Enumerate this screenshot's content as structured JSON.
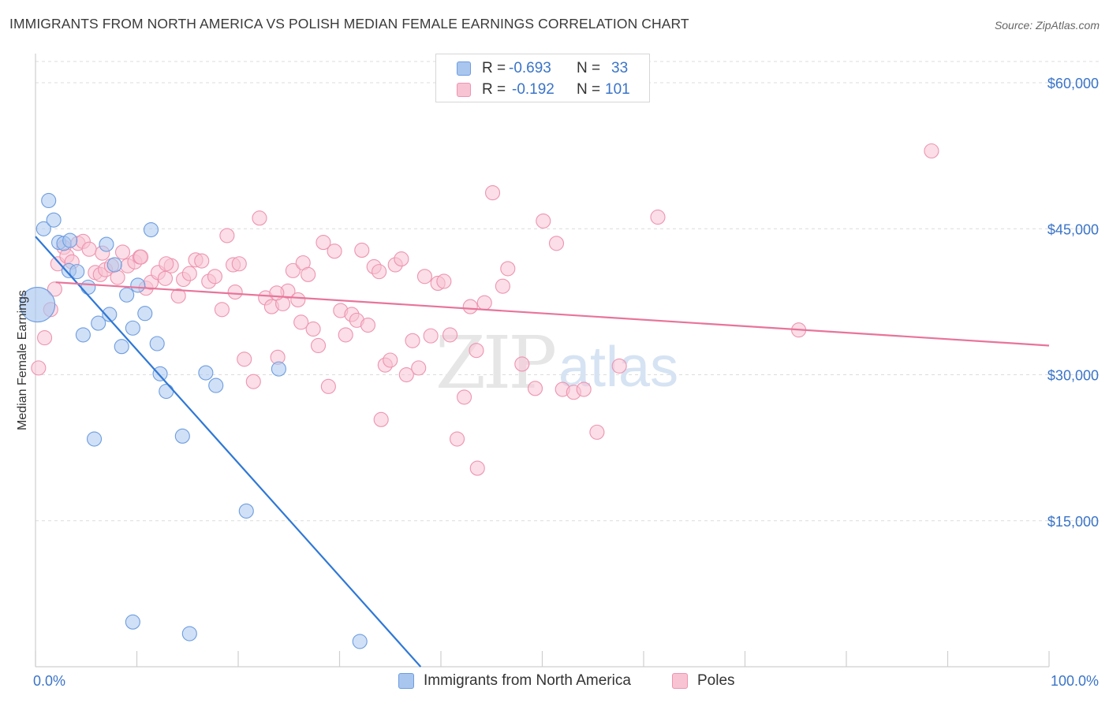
{
  "title": "IMMIGRANTS FROM NORTH AMERICA VS POLISH MEDIAN FEMALE EARNINGS CORRELATION CHART",
  "source": "Source: ZipAtlas.com",
  "watermark": {
    "zip": "ZIP",
    "atlas": "atlas"
  },
  "legend_top": {
    "rows": [
      {
        "r_label": "R = ",
        "r_value": "-0.693",
        "n_label": "N = ",
        "n_value": "33",
        "color": "#a9c6ef",
        "border": "#6d9de0"
      },
      {
        "r_label": "R = ",
        "r_value": "-0.192",
        "n_label": "N = ",
        "n_value": "101",
        "color": "#f8c3d3",
        "border": "#ee94b0"
      }
    ]
  },
  "legend_bottom": [
    {
      "label": "Immigrants from North America",
      "color": "#a9c6ef",
      "border": "#6d9de0"
    },
    {
      "label": "Poles",
      "color": "#f8c3d3",
      "border": "#ee94b0"
    }
  ],
  "chart_data": {
    "type": "scatter",
    "title": "IMMIGRANTS FROM NORTH AMERICA VS POLISH MEDIAN FEMALE EARNINGS CORRELATION CHART",
    "xlabel": "",
    "ylabel": "Median Female Earnings",
    "xlim": [
      0,
      100
    ],
    "ylim": [
      0,
      63000
    ],
    "x_tick_labels": [
      "0.0%",
      "100.0%"
    ],
    "y_ticks": [
      15000,
      30000,
      45000,
      60000
    ],
    "y_tick_labels": [
      "$15,000",
      "$30,000",
      "$45,000",
      "$60,000"
    ],
    "grid": true,
    "legend_position": "top-center",
    "series": [
      {
        "name": "Immigrants from North America",
        "color": "#a9c6ef",
        "stroke": "#6d9de0",
        "line_color": "#2f78d6",
        "trend": {
          "x": [
            0.0,
            38.0
          ],
          "y": [
            44200,
            0
          ]
        },
        "points": [
          {
            "x": 0.2,
            "y": 37200,
            "big": true
          },
          {
            "x": 0.8,
            "y": 45000
          },
          {
            "x": 1.3,
            "y": 47900
          },
          {
            "x": 1.8,
            "y": 45900
          },
          {
            "x": 2.3,
            "y": 43600
          },
          {
            "x": 2.8,
            "y": 43500
          },
          {
            "x": 3.4,
            "y": 43800
          },
          {
            "x": 3.3,
            "y": 40700
          },
          {
            "x": 4.1,
            "y": 40600
          },
          {
            "x": 5.2,
            "y": 39000
          },
          {
            "x": 7.0,
            "y": 43400
          },
          {
            "x": 7.8,
            "y": 41300
          },
          {
            "x": 9.0,
            "y": 38200
          },
          {
            "x": 10.1,
            "y": 39200
          },
          {
            "x": 11.4,
            "y": 44900
          },
          {
            "x": 7.3,
            "y": 36200
          },
          {
            "x": 6.2,
            "y": 35300
          },
          {
            "x": 4.7,
            "y": 34100
          },
          {
            "x": 9.6,
            "y": 34800
          },
          {
            "x": 10.8,
            "y": 36300
          },
          {
            "x": 12.0,
            "y": 33200
          },
          {
            "x": 8.5,
            "y": 32900
          },
          {
            "x": 12.3,
            "y": 30100
          },
          {
            "x": 12.9,
            "y": 28300
          },
          {
            "x": 16.8,
            "y": 30200
          },
          {
            "x": 17.8,
            "y": 28900
          },
          {
            "x": 24.0,
            "y": 30600
          },
          {
            "x": 5.8,
            "y": 23400
          },
          {
            "x": 14.5,
            "y": 23700
          },
          {
            "x": 20.8,
            "y": 16000
          },
          {
            "x": 9.6,
            "y": 4600
          },
          {
            "x": 15.2,
            "y": 3400
          },
          {
            "x": 32.0,
            "y": 2600
          }
        ]
      },
      {
        "name": "Poles",
        "color": "#f8c3d3",
        "stroke": "#ee94b0",
        "line_color": "#e8749a",
        "trend": {
          "x": [
            2.0,
            100.0
          ],
          "y": [
            39500,
            33000
          ]
        },
        "points": [
          {
            "x": 0.3,
            "y": 30700
          },
          {
            "x": 0.9,
            "y": 33800
          },
          {
            "x": 1.5,
            "y": 36700
          },
          {
            "x": 1.9,
            "y": 38800
          },
          {
            "x": 2.2,
            "y": 41400
          },
          {
            "x": 2.8,
            "y": 43100
          },
          {
            "x": 3.1,
            "y": 42200
          },
          {
            "x": 3.6,
            "y": 41600
          },
          {
            "x": 4.2,
            "y": 43500
          },
          {
            "x": 4.7,
            "y": 43700
          },
          {
            "x": 5.3,
            "y": 42900
          },
          {
            "x": 5.9,
            "y": 40500
          },
          {
            "x": 6.4,
            "y": 40300
          },
          {
            "x": 6.9,
            "y": 40800
          },
          {
            "x": 7.5,
            "y": 41200
          },
          {
            "x": 8.1,
            "y": 40000
          },
          {
            "x": 8.6,
            "y": 42600
          },
          {
            "x": 9.1,
            "y": 41200
          },
          {
            "x": 9.8,
            "y": 41600
          },
          {
            "x": 10.3,
            "y": 42100
          },
          {
            "x": 10.9,
            "y": 38900
          },
          {
            "x": 11.4,
            "y": 39500
          },
          {
            "x": 12.1,
            "y": 40500
          },
          {
            "x": 12.8,
            "y": 39900
          },
          {
            "x": 13.4,
            "y": 41200
          },
          {
            "x": 14.1,
            "y": 38100
          },
          {
            "x": 14.6,
            "y": 39800
          },
          {
            "x": 15.2,
            "y": 40400
          },
          {
            "x": 15.8,
            "y": 41800
          },
          {
            "x": 16.4,
            "y": 41700
          },
          {
            "x": 17.1,
            "y": 39600
          },
          {
            "x": 17.7,
            "y": 40100
          },
          {
            "x": 18.4,
            "y": 36700
          },
          {
            "x": 18.9,
            "y": 44300
          },
          {
            "x": 19.5,
            "y": 41300
          },
          {
            "x": 20.1,
            "y": 41400
          },
          {
            "x": 19.7,
            "y": 38500
          },
          {
            "x": 20.6,
            "y": 31600
          },
          {
            "x": 21.5,
            "y": 29300
          },
          {
            "x": 22.1,
            "y": 46100
          },
          {
            "x": 22.7,
            "y": 37900
          },
          {
            "x": 23.3,
            "y": 37000
          },
          {
            "x": 23.9,
            "y": 31800
          },
          {
            "x": 24.4,
            "y": 37300
          },
          {
            "x": 24.9,
            "y": 38600
          },
          {
            "x": 25.4,
            "y": 40700
          },
          {
            "x": 25.9,
            "y": 37700
          },
          {
            "x": 26.4,
            "y": 41500
          },
          {
            "x": 26.9,
            "y": 40300
          },
          {
            "x": 27.4,
            "y": 34700
          },
          {
            "x": 27.9,
            "y": 33000
          },
          {
            "x": 28.4,
            "y": 43600
          },
          {
            "x": 28.9,
            "y": 28800
          },
          {
            "x": 29.5,
            "y": 42700
          },
          {
            "x": 30.1,
            "y": 36600
          },
          {
            "x": 30.6,
            "y": 34100
          },
          {
            "x": 31.2,
            "y": 36200
          },
          {
            "x": 31.7,
            "y": 35600
          },
          {
            "x": 32.2,
            "y": 42800
          },
          {
            "x": 32.8,
            "y": 35100
          },
          {
            "x": 33.4,
            "y": 41100
          },
          {
            "x": 33.9,
            "y": 40600
          },
          {
            "x": 34.5,
            "y": 31000
          },
          {
            "x": 35.0,
            "y": 31500
          },
          {
            "x": 35.5,
            "y": 41300
          },
          {
            "x": 36.1,
            "y": 41900
          },
          {
            "x": 36.6,
            "y": 30000
          },
          {
            "x": 37.2,
            "y": 33500
          },
          {
            "x": 37.8,
            "y": 30700
          },
          {
            "x": 38.4,
            "y": 40100
          },
          {
            "x": 39.0,
            "y": 34000
          },
          {
            "x": 39.7,
            "y": 39400
          },
          {
            "x": 40.3,
            "y": 39600
          },
          {
            "x": 40.9,
            "y": 34100
          },
          {
            "x": 41.6,
            "y": 23400
          },
          {
            "x": 42.3,
            "y": 27700
          },
          {
            "x": 42.9,
            "y": 37000
          },
          {
            "x": 43.5,
            "y": 32500
          },
          {
            "x": 43.6,
            "y": 20400
          },
          {
            "x": 44.3,
            "y": 37400
          },
          {
            "x": 45.1,
            "y": 48700
          },
          {
            "x": 46.1,
            "y": 39100
          },
          {
            "x": 46.6,
            "y": 40900
          },
          {
            "x": 48.0,
            "y": 31100
          },
          {
            "x": 49.3,
            "y": 28600
          },
          {
            "x": 50.1,
            "y": 45800
          },
          {
            "x": 51.4,
            "y": 43500
          },
          {
            "x": 52.0,
            "y": 28500
          },
          {
            "x": 53.1,
            "y": 28200
          },
          {
            "x": 54.1,
            "y": 28500
          },
          {
            "x": 55.4,
            "y": 24100
          },
          {
            "x": 57.6,
            "y": 30900
          },
          {
            "x": 61.4,
            "y": 46200
          },
          {
            "x": 75.3,
            "y": 34600
          },
          {
            "x": 88.4,
            "y": 53000
          },
          {
            "x": 23.8,
            "y": 38400
          },
          {
            "x": 12.9,
            "y": 41400
          },
          {
            "x": 6.6,
            "y": 42500
          },
          {
            "x": 34.1,
            "y": 25400
          },
          {
            "x": 26.2,
            "y": 35400
          },
          {
            "x": 10.4,
            "y": 42100
          }
        ]
      }
    ]
  }
}
